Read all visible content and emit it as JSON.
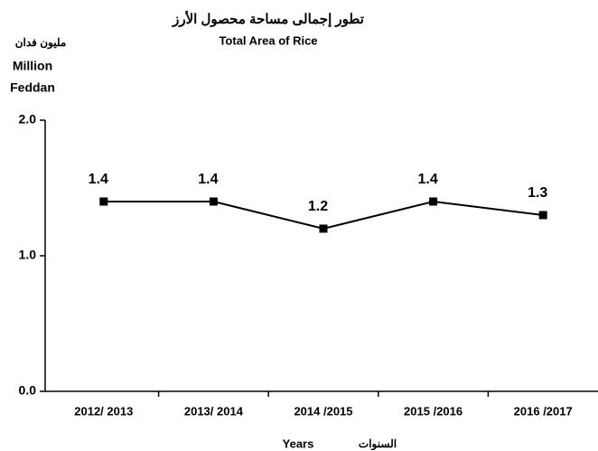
{
  "chart_data": {
    "type": "line",
    "title": "تطور إجمالى مساحة محصول الأرز",
    "subtitle": "Total Area of Rice",
    "y_label_ar": "مليون فدان",
    "y_label_lines": [
      "Million",
      "Feddan"
    ],
    "x_label": "Years",
    "x_label_ar": "السنوات",
    "categories": [
      "2012/ 2013",
      "2013/ 2014",
      "2014 /2015",
      "2015 /2016",
      "2016 /2017"
    ],
    "values": [
      1.4,
      1.4,
      1.2,
      1.4,
      1.3
    ],
    "color": "#000000",
    "ylim": [
      0,
      2
    ],
    "yticks": [
      {
        "value": 0,
        "label": "0.0"
      },
      {
        "value": 1,
        "label": "1.0"
      },
      {
        "value": 2,
        "label": "2.0"
      }
    ]
  }
}
